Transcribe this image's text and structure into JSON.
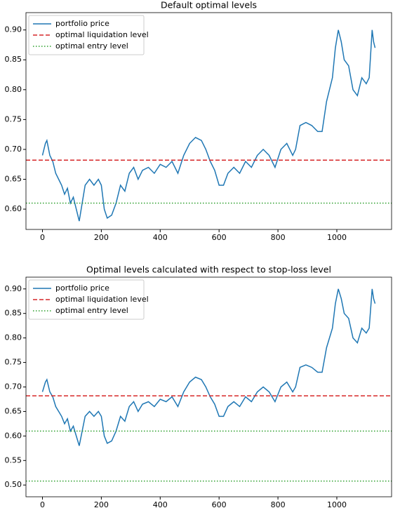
{
  "chart_data": [
    {
      "type": "line",
      "title": "Default optimal levels",
      "x": [
        0,
        10,
        15,
        25,
        35,
        45,
        55,
        65,
        75,
        85,
        95,
        105,
        115,
        125,
        135,
        145,
        160,
        175,
        190,
        200,
        210,
        220,
        235,
        250,
        265,
        280,
        295,
        310,
        325,
        340,
        360,
        380,
        400,
        420,
        440,
        460,
        480,
        500,
        520,
        540,
        555,
        570,
        585,
        600,
        615,
        630,
        650,
        670,
        690,
        710,
        730,
        750,
        770,
        790,
        810,
        830,
        850,
        860,
        875,
        895,
        915,
        935,
        950,
        965,
        985,
        995,
        1005,
        1015,
        1025,
        1040,
        1055,
        1070,
        1085,
        1100,
        1110,
        1120,
        1125,
        1130
      ],
      "series": [
        {
          "name": "portfolio price",
          "color": "#1f77b4",
          "values": [
            0.69,
            0.71,
            0.715,
            0.69,
            0.68,
            0.66,
            0.65,
            0.64,
            0.625,
            0.635,
            0.61,
            0.62,
            0.6,
            0.58,
            0.61,
            0.64,
            0.65,
            0.64,
            0.65,
            0.64,
            0.6,
            0.585,
            0.59,
            0.61,
            0.64,
            0.63,
            0.66,
            0.67,
            0.65,
            0.665,
            0.67,
            0.66,
            0.675,
            0.67,
            0.68,
            0.66,
            0.69,
            0.71,
            0.72,
            0.715,
            0.7,
            0.68,
            0.665,
            0.64,
            0.64,
            0.66,
            0.67,
            0.66,
            0.68,
            0.67,
            0.69,
            0.7,
            0.69,
            0.67,
            0.7,
            0.71,
            0.69,
            0.7,
            0.74,
            0.745,
            0.74,
            0.73,
            0.73,
            0.78,
            0.82,
            0.87,
            0.9,
            0.88,
            0.85,
            0.84,
            0.8,
            0.79,
            0.82,
            0.81,
            0.82,
            0.9,
            0.88,
            0.87
          ]
        }
      ],
      "hlines": [
        {
          "name": "optimal liquidation level",
          "color": "#d62728",
          "style": "dashed",
          "value": 0.682
        },
        {
          "name": "optimal entry level",
          "color": "#2ca02c",
          "style": "dotted",
          "value": 0.61
        }
      ],
      "xlim": [
        -56,
        1186
      ],
      "xticks": [
        0,
        200,
        400,
        600,
        800,
        1000
      ],
      "ylim": [
        0.566,
        0.929
      ],
      "yticks": [
        {
          "value": 0.6,
          "label": "0.60"
        },
        {
          "value": 0.65,
          "label": "0.65"
        },
        {
          "value": 0.7,
          "label": "0.70"
        },
        {
          "value": 0.75,
          "label": "0.75"
        },
        {
          "value": 0.8,
          "label": "0.80"
        },
        {
          "value": 0.85,
          "label": "0.85"
        },
        {
          "value": 0.9,
          "label": "0.90"
        }
      ],
      "legend": "upper left"
    },
    {
      "type": "line",
      "title": "Optimal levels calculated with respect to stop-loss level",
      "x": [
        0,
        10,
        15,
        25,
        35,
        45,
        55,
        65,
        75,
        85,
        95,
        105,
        115,
        125,
        135,
        145,
        160,
        175,
        190,
        200,
        210,
        220,
        235,
        250,
        265,
        280,
        295,
        310,
        325,
        340,
        360,
        380,
        400,
        420,
        440,
        460,
        480,
        500,
        520,
        540,
        555,
        570,
        585,
        600,
        615,
        630,
        650,
        670,
        690,
        710,
        730,
        750,
        770,
        790,
        810,
        830,
        850,
        860,
        875,
        895,
        915,
        935,
        950,
        965,
        985,
        995,
        1005,
        1015,
        1025,
        1040,
        1055,
        1070,
        1085,
        1100,
        1110,
        1120,
        1125,
        1130
      ],
      "series": [
        {
          "name": "portfolio price",
          "color": "#1f77b4",
          "values": [
            0.69,
            0.71,
            0.715,
            0.69,
            0.68,
            0.66,
            0.65,
            0.64,
            0.625,
            0.635,
            0.61,
            0.62,
            0.6,
            0.58,
            0.61,
            0.64,
            0.65,
            0.64,
            0.65,
            0.64,
            0.6,
            0.585,
            0.59,
            0.61,
            0.64,
            0.63,
            0.66,
            0.67,
            0.65,
            0.665,
            0.67,
            0.66,
            0.675,
            0.67,
            0.68,
            0.66,
            0.69,
            0.71,
            0.72,
            0.715,
            0.7,
            0.68,
            0.665,
            0.64,
            0.64,
            0.66,
            0.67,
            0.66,
            0.68,
            0.67,
            0.69,
            0.7,
            0.69,
            0.67,
            0.7,
            0.71,
            0.69,
            0.7,
            0.74,
            0.745,
            0.74,
            0.73,
            0.73,
            0.78,
            0.82,
            0.87,
            0.9,
            0.88,
            0.85,
            0.84,
            0.8,
            0.79,
            0.82,
            0.81,
            0.82,
            0.9,
            0.88,
            0.87
          ]
        }
      ],
      "hlines": [
        {
          "name": "optimal liquidation level",
          "color": "#d62728",
          "style": "dashed",
          "value": 0.682
        },
        {
          "name": "optimal entry level",
          "color": "#2ca02c",
          "style": "dotted",
          "value": 0.61
        },
        {
          "color": "#2ca02c",
          "style": "dotted",
          "value": 0.508
        }
      ],
      "xlim": [
        -56,
        1186
      ],
      "xticks": [
        0,
        200,
        400,
        600,
        800,
        1000
      ],
      "ylim": [
        0.476,
        0.924
      ],
      "yticks": [
        {
          "value": 0.5,
          "label": "0.50"
        },
        {
          "value": 0.55,
          "label": "0.55"
        },
        {
          "value": 0.6,
          "label": "0.60"
        },
        {
          "value": 0.65,
          "label": "0.65"
        },
        {
          "value": 0.7,
          "label": "0.70"
        },
        {
          "value": 0.75,
          "label": "0.75"
        },
        {
          "value": 0.8,
          "label": "0.80"
        },
        {
          "value": 0.85,
          "label": "0.85"
        },
        {
          "value": 0.9,
          "label": "0.90"
        }
      ],
      "legend": "upper left"
    }
  ]
}
